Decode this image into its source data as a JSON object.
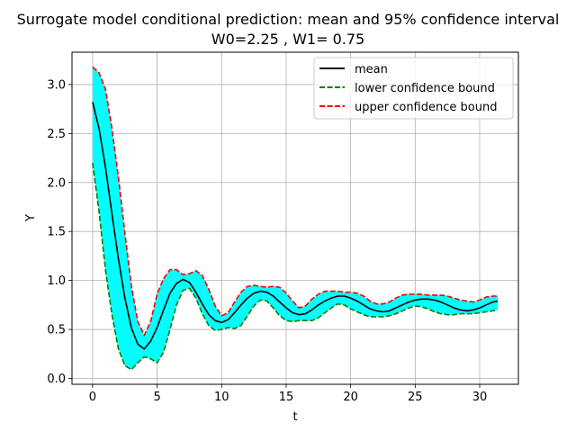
{
  "chart_data": {
    "type": "line",
    "title": "Surrogate model conditional prediction: mean and 95% confidence interval",
    "subtitle": "W0=2.25 , W1= 0.75",
    "xlabel": "t",
    "ylabel": "Y",
    "xlim": [
      -1.6,
      33.0
    ],
    "ylim": [
      -0.06,
      3.33
    ],
    "xticks": [
      "0",
      "5",
      "10",
      "15",
      "20",
      "25",
      "30"
    ],
    "xtick_values": [
      0,
      5,
      10,
      15,
      20,
      25,
      30
    ],
    "yticks": [
      "0.0",
      "0.5",
      "1.0",
      "1.5",
      "2.0",
      "2.5",
      "3.0"
    ],
    "ytick_values": [
      0.0,
      0.5,
      1.0,
      1.5,
      2.0,
      2.5,
      3.0
    ],
    "grid": true,
    "legend_position": "upper right",
    "fill_color": "#00ffff",
    "x": [
      0,
      0.5,
      1,
      1.5,
      2,
      2.5,
      3,
      3.5,
      4,
      4.5,
      5,
      5.5,
      6,
      6.5,
      7,
      7.5,
      8,
      8.5,
      9,
      9.5,
      10,
      10.5,
      11,
      11.5,
      12,
      12.5,
      13,
      13.5,
      14,
      14.5,
      15,
      15.5,
      16,
      16.5,
      17,
      17.5,
      18,
      18.5,
      19,
      19.5,
      20,
      20.5,
      21,
      21.5,
      22,
      22.5,
      23,
      23.5,
      24,
      24.5,
      25,
      25.5,
      26,
      26.5,
      27,
      27.5,
      28,
      28.5,
      29,
      29.5,
      30,
      30.5,
      31,
      31.4
    ],
    "series": [
      {
        "name": "mean",
        "color": "#000000",
        "dash": "solid",
        "values": [
          2.82,
          2.55,
          2.15,
          1.68,
          1.22,
          0.82,
          0.52,
          0.35,
          0.3,
          0.38,
          0.52,
          0.7,
          0.87,
          0.97,
          1.01,
          0.98,
          0.88,
          0.76,
          0.65,
          0.59,
          0.57,
          0.6,
          0.67,
          0.75,
          0.82,
          0.87,
          0.89,
          0.88,
          0.84,
          0.78,
          0.72,
          0.67,
          0.65,
          0.66,
          0.7,
          0.75,
          0.79,
          0.82,
          0.84,
          0.84,
          0.82,
          0.79,
          0.75,
          0.71,
          0.69,
          0.68,
          0.69,
          0.72,
          0.75,
          0.78,
          0.8,
          0.81,
          0.81,
          0.8,
          0.78,
          0.75,
          0.72,
          0.7,
          0.69,
          0.7,
          0.72,
          0.75,
          0.78,
          0.79
        ]
      },
      {
        "name": "lower confidence bound",
        "color": "#008000",
        "dash": "dashed",
        "values": [
          2.2,
          1.7,
          1.1,
          0.65,
          0.3,
          0.13,
          0.09,
          0.16,
          0.22,
          0.2,
          0.16,
          0.27,
          0.5,
          0.75,
          0.9,
          0.92,
          0.82,
          0.66,
          0.54,
          0.49,
          0.5,
          0.52,
          0.51,
          0.54,
          0.64,
          0.74,
          0.8,
          0.79,
          0.72,
          0.64,
          0.59,
          0.58,
          0.59,
          0.59,
          0.59,
          0.62,
          0.67,
          0.72,
          0.76,
          0.75,
          0.71,
          0.68,
          0.65,
          0.63,
          0.63,
          0.63,
          0.64,
          0.66,
          0.69,
          0.72,
          0.74,
          0.73,
          0.71,
          0.68,
          0.66,
          0.65,
          0.65,
          0.66,
          0.66,
          0.66,
          0.67,
          0.68,
          0.69,
          0.7
        ]
      },
      {
        "name": "upper confidence bound",
        "color": "#ff0000",
        "dash": "dashed",
        "values": [
          3.18,
          3.12,
          2.95,
          2.55,
          2.05,
          1.48,
          0.95,
          0.58,
          0.44,
          0.58,
          0.86,
          1.02,
          1.11,
          1.11,
          1.06,
          1.07,
          1.1,
          1.05,
          0.91,
          0.74,
          0.64,
          0.67,
          0.78,
          0.88,
          0.94,
          0.95,
          0.94,
          0.93,
          0.94,
          0.93,
          0.87,
          0.79,
          0.72,
          0.74,
          0.81,
          0.86,
          0.89,
          0.89,
          0.89,
          0.88,
          0.88,
          0.87,
          0.84,
          0.79,
          0.76,
          0.76,
          0.78,
          0.82,
          0.85,
          0.86,
          0.86,
          0.86,
          0.85,
          0.85,
          0.85,
          0.84,
          0.82,
          0.8,
          0.79,
          0.78,
          0.8,
          0.83,
          0.84,
          0.84
        ]
      }
    ]
  }
}
